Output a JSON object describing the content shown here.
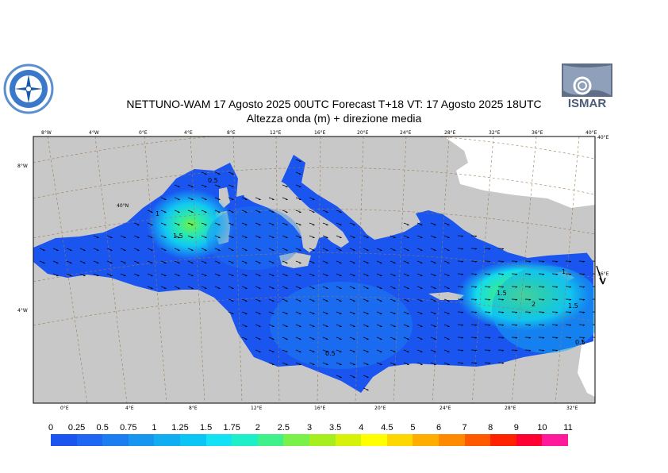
{
  "title_line1": "NETTUNO-WAM  17   Agosto  2025 00UTC Forecast T+18 VT: 17   Agosto  2025 18UTC",
  "title_line2": "Altezza onda (m) + direzione media",
  "logo_right_text": "ISMAR",
  "top_lon_labels": [
    "8°W",
    "4°W",
    "0°E",
    "4°E",
    "8°E",
    "12°E",
    "16°E",
    "20°E",
    "24°E",
    "28°E",
    "32°E",
    "36°E",
    "40°E"
  ],
  "bottom_lon_labels": [
    "0°E",
    "4°E",
    "8°E",
    "12°E",
    "16°E",
    "20°E",
    "24°E",
    "28°E",
    "32°E"
  ],
  "left_lat_labels": [
    "8°W",
    "40°N",
    "4°W"
  ],
  "right_lat_labels": [
    "40°E",
    "36°E"
  ],
  "contour_labels": [
    "0.5",
    "1",
    "1.5",
    "0.5",
    "1.5",
    "2",
    "1.5",
    "1",
    "0.5",
    "1"
  ],
  "colorbar": {
    "levels": [
      "0",
      "0.25",
      "0.5",
      "0.75",
      "1",
      "1.25",
      "1.5",
      "1.75",
      "2",
      "2.5",
      "3",
      "3.5",
      "4",
      "4.5",
      "5",
      "6",
      "7",
      "8",
      "9",
      "10",
      "11"
    ],
    "colors": [
      "#1a55f0",
      "#1f66f2",
      "#1c7df0",
      "#1696ee",
      "#10aef0",
      "#0bc6f4",
      "#13e2f4",
      "#1df0c8",
      "#40f08a",
      "#7af04a",
      "#a6ee1e",
      "#d7f20a",
      "#ffff00",
      "#ffd700",
      "#ffae00",
      "#ff8a00",
      "#ff5a00",
      "#ff2200",
      "#ff0033",
      "#ff1a9c"
    ]
  },
  "colors": {
    "land": "#c8c8c8",
    "sea": "#1a55f0",
    "grid": "#9a7a55"
  }
}
